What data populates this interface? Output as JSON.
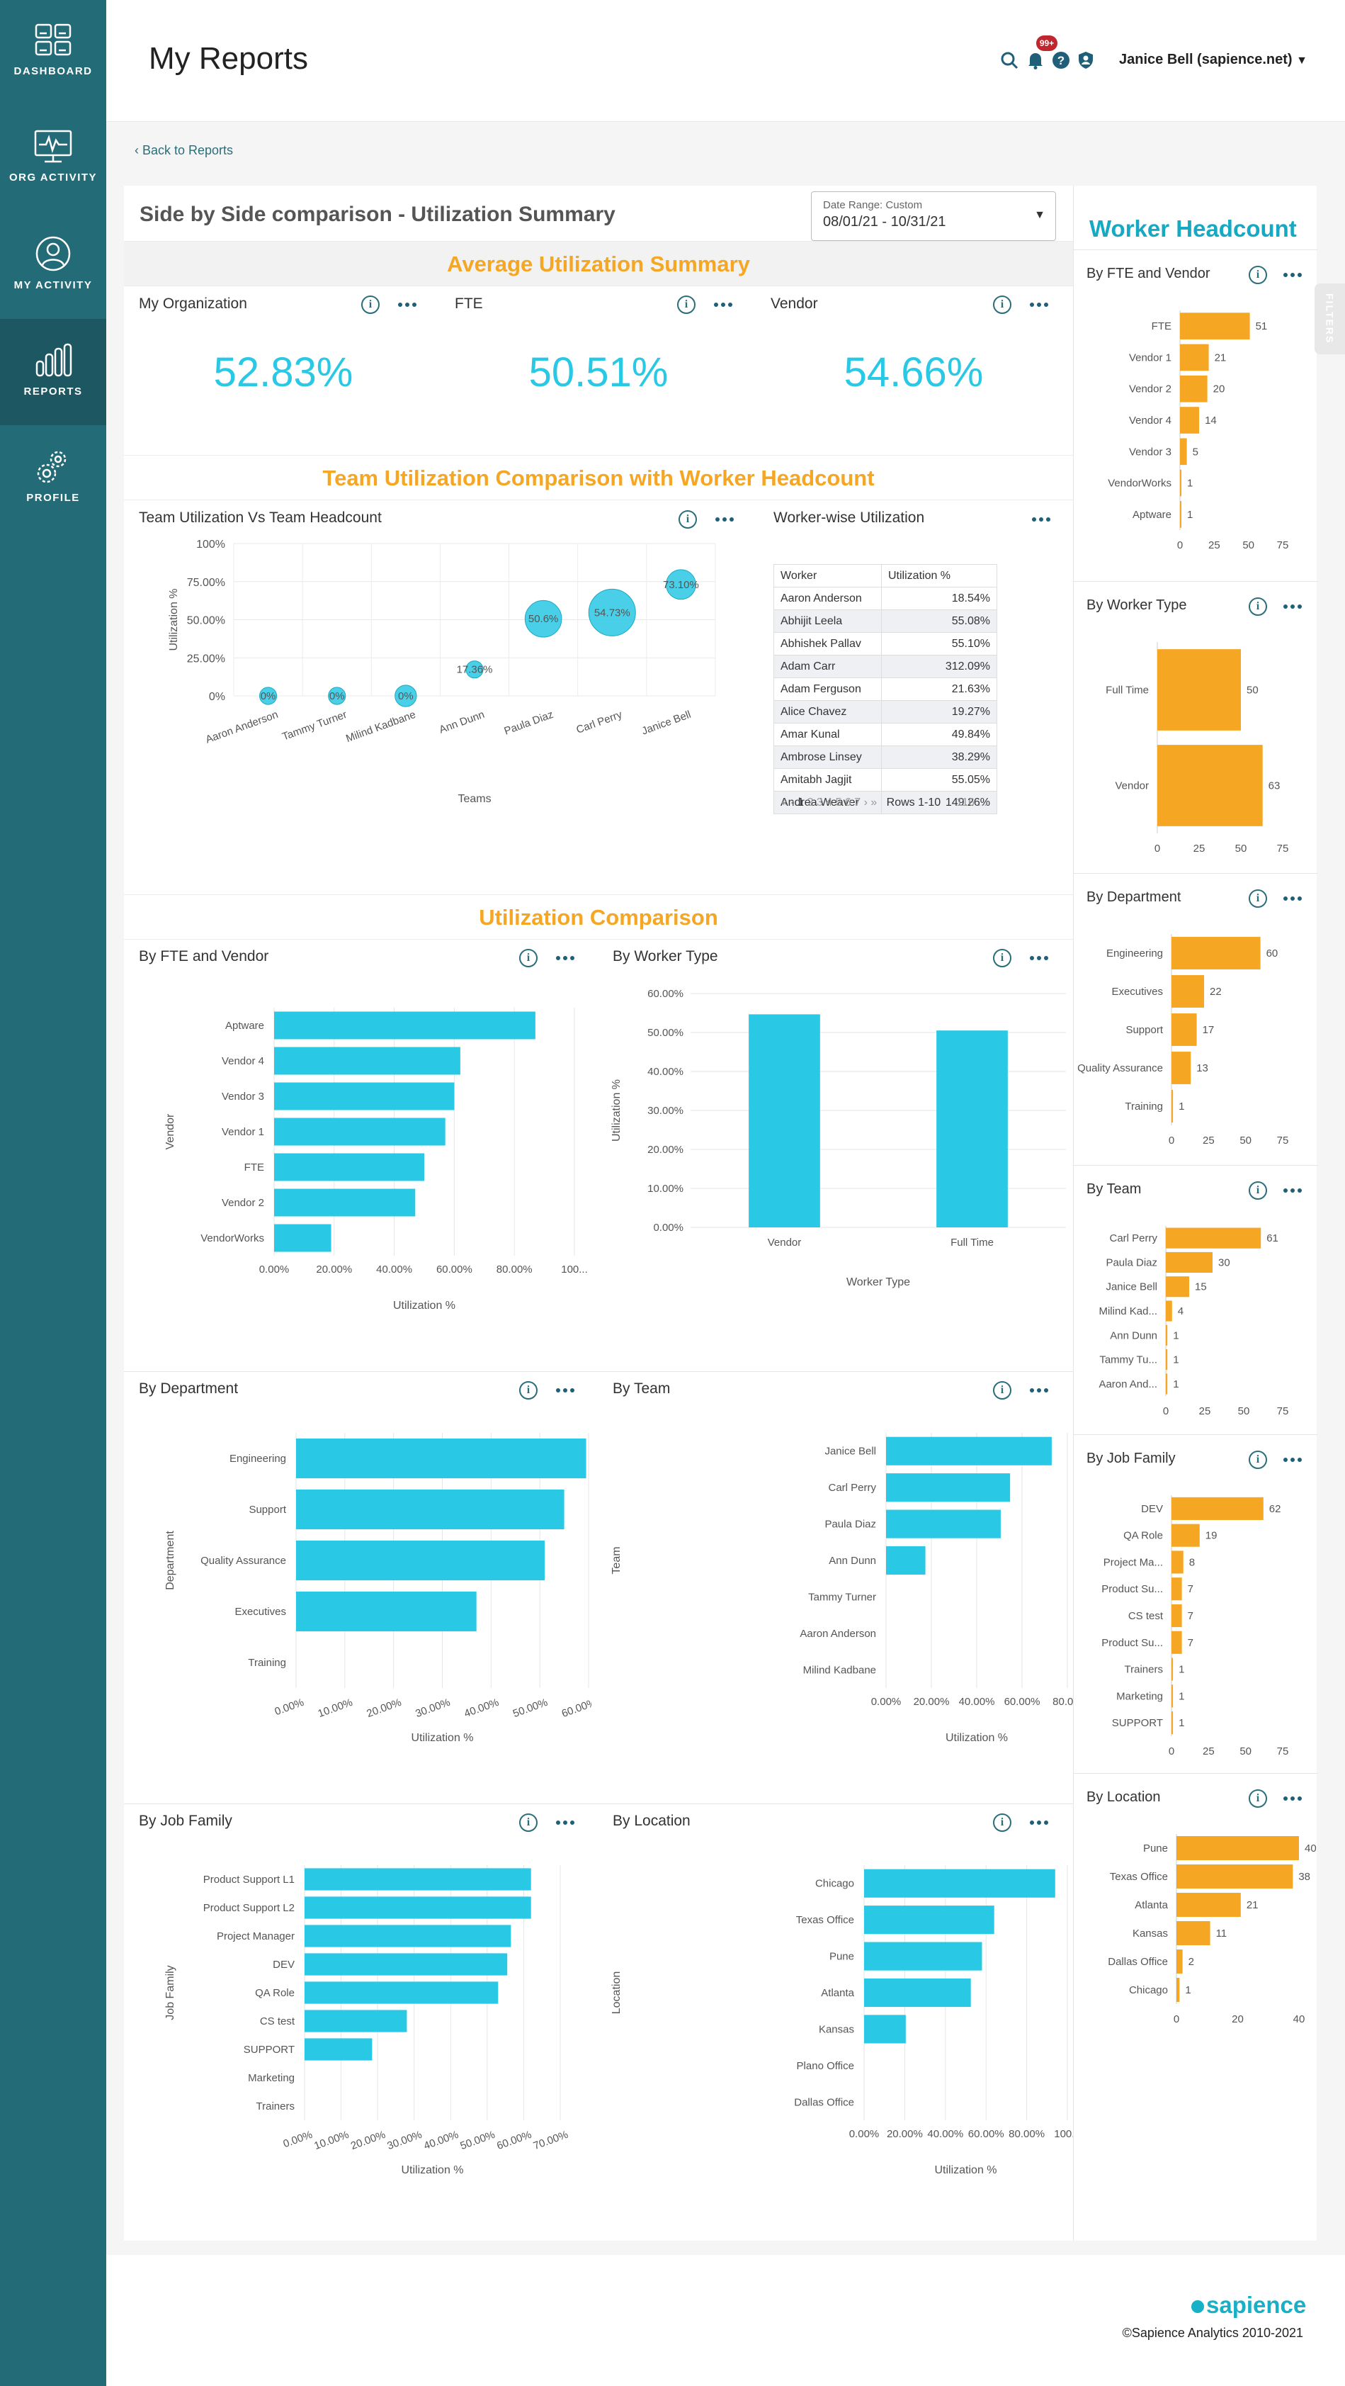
{
  "nav": [
    {
      "label": "DASHBOARD",
      "icon": "dashboard-icon"
    },
    {
      "label": "ORG ACTIVITY",
      "icon": "monitor-icon"
    },
    {
      "label": "MY ACTIVITY",
      "icon": "user-icon"
    },
    {
      "label": "REPORTS",
      "icon": "bar-chart-icon",
      "active": true
    },
    {
      "label": "PROFILE",
      "icon": "gears-icon"
    }
  ],
  "header": {
    "title": "My Reports",
    "notification_badge": "99+",
    "user": "Janice Bell (sapience.net)"
  },
  "back_link": "Back to Reports",
  "report": {
    "title": "Side by Side comparison - Utilization Summary",
    "date_label": "Date Range: Custom",
    "date_value": "08/01/21 - 10/31/21"
  },
  "avg_summary": {
    "title": "Average Utilization Summary",
    "cards": [
      {
        "label": "My Organization",
        "value": "52.83%"
      },
      {
        "label": "FTE",
        "value": "50.51%"
      },
      {
        "label": "Vendor",
        "value": "54.66%"
      }
    ]
  },
  "team_section": {
    "title": "Team Utilization Comparison with Worker Headcount",
    "bubble_title": "Team Utilization Vs Team Headcount",
    "table_title": "Worker-wise Utilization"
  },
  "worker_table": {
    "headers": [
      "Worker",
      "Utilization %"
    ],
    "rows": [
      [
        "Aaron Anderson",
        "18.54%"
      ],
      [
        "Abhijit Leela",
        "55.08%"
      ],
      [
        "Abhishek Pallav",
        "55.10%"
      ],
      [
        "Adam Carr",
        "312.09%"
      ],
      [
        "Adam Ferguson",
        "21.63%"
      ],
      [
        "Alice Chavez",
        "19.27%"
      ],
      [
        "Amar Kunal",
        "49.84%"
      ],
      [
        "Ambrose Linsey",
        "38.29%"
      ],
      [
        "Amitabh Jagjit",
        "55.05%"
      ],
      [
        "Andrea Weaver",
        "149.26%"
      ]
    ],
    "pager_arrows_left": "« ‹",
    "pages": [
      "1",
      "2",
      "3",
      "4",
      "5",
      "6",
      "7"
    ],
    "pager_arrows_right": "› »",
    "rows_label": "Rows 1-10",
    "total_label": "116 ..."
  },
  "util_section": {
    "title": "Utilization Comparison"
  },
  "wh": {
    "title": "Worker Headcount"
  },
  "footer": {
    "brand": "sapience",
    "copyright": "©Sapience Analytics 2010-2021"
  },
  "filters_label": "FILTERS",
  "colors": {
    "accent": "#29c8e4",
    "orange": "#f5a623",
    "teal": "#246b78"
  },
  "chart_data": [
    {
      "id": "bubble",
      "type": "scatter",
      "title": "Team Utilization Vs Team Headcount",
      "xlabel": "Teams",
      "ylabel": "Utilization %",
      "categories": [
        "Aaron Anderson",
        "Tammy Turner",
        "Milind Kadbane",
        "Ann Dunn",
        "Paula Diaz",
        "Carl Perry",
        "Janice Bell"
      ],
      "values": [
        0,
        0,
        0,
        17.36,
        50.6,
        54.73,
        73.1
      ],
      "sizes": [
        1,
        1,
        4,
        1,
        30,
        61,
        15
      ],
      "labels": [
        "0%",
        "0%",
        "0%",
        "17.36%",
        "50.6%",
        "54.73%",
        "73.10%"
      ],
      "ylim": [
        0,
        100
      ],
      "yticks": [
        "0%",
        "25.00%",
        "50.00%",
        "75.00%",
        "100%"
      ],
      "grid": true
    },
    {
      "id": "u_fte",
      "type": "bar",
      "orientation": "horizontal",
      "title": "By FTE and Vendor",
      "xlabel": "Utilization %",
      "ylabel": "Vendor",
      "categories": [
        "Aptware",
        "Vendor 4",
        "Vendor 3",
        "Vendor 1",
        "FTE",
        "Vendor 2",
        "VendorWorks"
      ],
      "values": [
        87,
        62,
        60,
        57,
        50,
        47,
        19
      ],
      "xlim": [
        0,
        100
      ],
      "xticks": [
        "0.00%",
        "20.00%",
        "40.00%",
        "60.00%",
        "80.00%",
        "100..."
      ]
    },
    {
      "id": "u_wt",
      "type": "bar",
      "orientation": "vertical",
      "title": "By Worker Type",
      "xlabel": "Worker Type",
      "ylabel": "Utilization %",
      "categories": [
        "Vendor",
        "Full Time"
      ],
      "values": [
        54.66,
        50.51
      ],
      "ylim": [
        0,
        60
      ],
      "yticks": [
        "0.00%",
        "10.00%",
        "20.00%",
        "30.00%",
        "40.00%",
        "50.00%",
        "60.00%"
      ]
    },
    {
      "id": "u_dept",
      "type": "bar",
      "orientation": "horizontal",
      "title": "By Department",
      "xlabel": "Utilization %",
      "ylabel": "Department",
      "categories": [
        "Engineering",
        "Support",
        "Quality Assurance",
        "Executives",
        "Training"
      ],
      "values": [
        59.5,
        55,
        51,
        37,
        0
      ],
      "xlim": [
        0,
        60
      ],
      "xticks": [
        "0.00%",
        "10.00%",
        "20.00%",
        "30.00%",
        "40.00%",
        "50.00%",
        "60.00%"
      ],
      "rotate": true
    },
    {
      "id": "u_team",
      "type": "bar",
      "orientation": "horizontal",
      "title": "By Team",
      "xlabel": "Utilization %",
      "ylabel": "Team",
      "categories": [
        "Janice Bell",
        "Carl Perry",
        "Paula Diaz",
        "Ann Dunn",
        "Tammy Turner",
        "Aaron Anderson",
        "Milind Kadbane"
      ],
      "values": [
        73.1,
        54.73,
        50.6,
        17.36,
        0,
        0,
        0
      ],
      "xlim": [
        0,
        80
      ],
      "xticks": [
        "0.00%",
        "20.00%",
        "40.00%",
        "60.00%",
        "80.0..."
      ]
    },
    {
      "id": "u_job",
      "type": "bar",
      "orientation": "horizontal",
      "title": "By Job Family",
      "xlabel": "Utilization %",
      "ylabel": "Job Family",
      "categories": [
        "Product Support L1",
        "Product Support L2",
        "Project Manager",
        "DEV",
        "QA Role",
        "CS test",
        "SUPPORT",
        "Marketing",
        "Trainers"
      ],
      "values": [
        62,
        62,
        56.5,
        55.5,
        53,
        28,
        18.5,
        0,
        0
      ],
      "xlim": [
        0,
        70
      ],
      "xticks": [
        "0.00%",
        "10.00%",
        "20.00%",
        "30.00%",
        "40.00%",
        "50.00%",
        "60.00%",
        "70.00%"
      ],
      "rotate": true
    },
    {
      "id": "u_loc",
      "type": "bar",
      "orientation": "horizontal",
      "title": "By Location",
      "xlabel": "Utilization %",
      "ylabel": "Location",
      "categories": [
        "Chicago",
        "Texas Office",
        "Pune",
        "Atlanta",
        "Kansas",
        "Plano Office",
        "Dallas Office"
      ],
      "values": [
        94,
        64,
        58,
        52.5,
        20.5,
        0,
        0
      ],
      "xlim": [
        0,
        100
      ],
      "xticks": [
        "0.00%",
        "20.00%",
        "40.00%",
        "60.00%",
        "80.00%",
        "100..."
      ]
    },
    {
      "id": "w_fte",
      "type": "bar",
      "orientation": "horizontal",
      "title": "By FTE and Vendor",
      "categories": [
        "FTE",
        "Vendor 1",
        "Vendor 2",
        "Vendor 4",
        "Vendor 3",
        "VendorWorks",
        "Aptware"
      ],
      "values": [
        51,
        21,
        20,
        14,
        5,
        1,
        1
      ],
      "xlim": [
        0,
        75
      ],
      "xticks": [
        "0",
        "25",
        "50",
        "75"
      ]
    },
    {
      "id": "w_wt",
      "type": "bar",
      "orientation": "horizontal",
      "title": "By Worker Type",
      "categories": [
        "Full Time",
        "Vendor"
      ],
      "values": [
        50,
        63
      ],
      "xlim": [
        0,
        75
      ],
      "xticks": [
        "0",
        "25",
        "50",
        "75"
      ]
    },
    {
      "id": "w_dept",
      "type": "bar",
      "orientation": "horizontal",
      "title": "By Department",
      "categories": [
        "Engineering",
        "Executives",
        "Support",
        "Quality Assurance",
        "Training"
      ],
      "values": [
        60,
        22,
        17,
        13,
        1
      ],
      "xlim": [
        0,
        75
      ],
      "xticks": [
        "0",
        "25",
        "50",
        "75"
      ]
    },
    {
      "id": "w_team",
      "type": "bar",
      "orientation": "horizontal",
      "title": "By Team",
      "categories": [
        "Carl Perry",
        "Paula Diaz",
        "Janice Bell",
        "Milind Kad...",
        "Ann Dunn",
        "Tammy Tu...",
        "Aaron And..."
      ],
      "values": [
        61,
        30,
        15,
        4,
        1,
        1,
        1
      ],
      "xlim": [
        0,
        75
      ],
      "xticks": [
        "0",
        "25",
        "50",
        "75"
      ]
    },
    {
      "id": "w_job",
      "type": "bar",
      "orientation": "horizontal",
      "title": "By Job Family",
      "categories": [
        "DEV",
        "QA Role",
        "Project Ma...",
        "Product Su...",
        "CS test",
        "Product Su...",
        "Trainers",
        "Marketing",
        "SUPPORT"
      ],
      "values": [
        62,
        19,
        8,
        7,
        7,
        7,
        1,
        1,
        1
      ],
      "xlim": [
        0,
        75
      ],
      "xticks": [
        "0",
        "25",
        "50",
        "75"
      ]
    },
    {
      "id": "w_loc",
      "type": "bar",
      "orientation": "horizontal",
      "title": "By Location",
      "categories": [
        "Pune",
        "Texas Office",
        "Atlanta",
        "Kansas",
        "Dallas Office",
        "Chicago"
      ],
      "values": [
        40,
        38,
        21,
        11,
        2,
        1
      ],
      "xlim": [
        0,
        40
      ],
      "xticks": [
        "0",
        "20",
        "40"
      ]
    }
  ]
}
